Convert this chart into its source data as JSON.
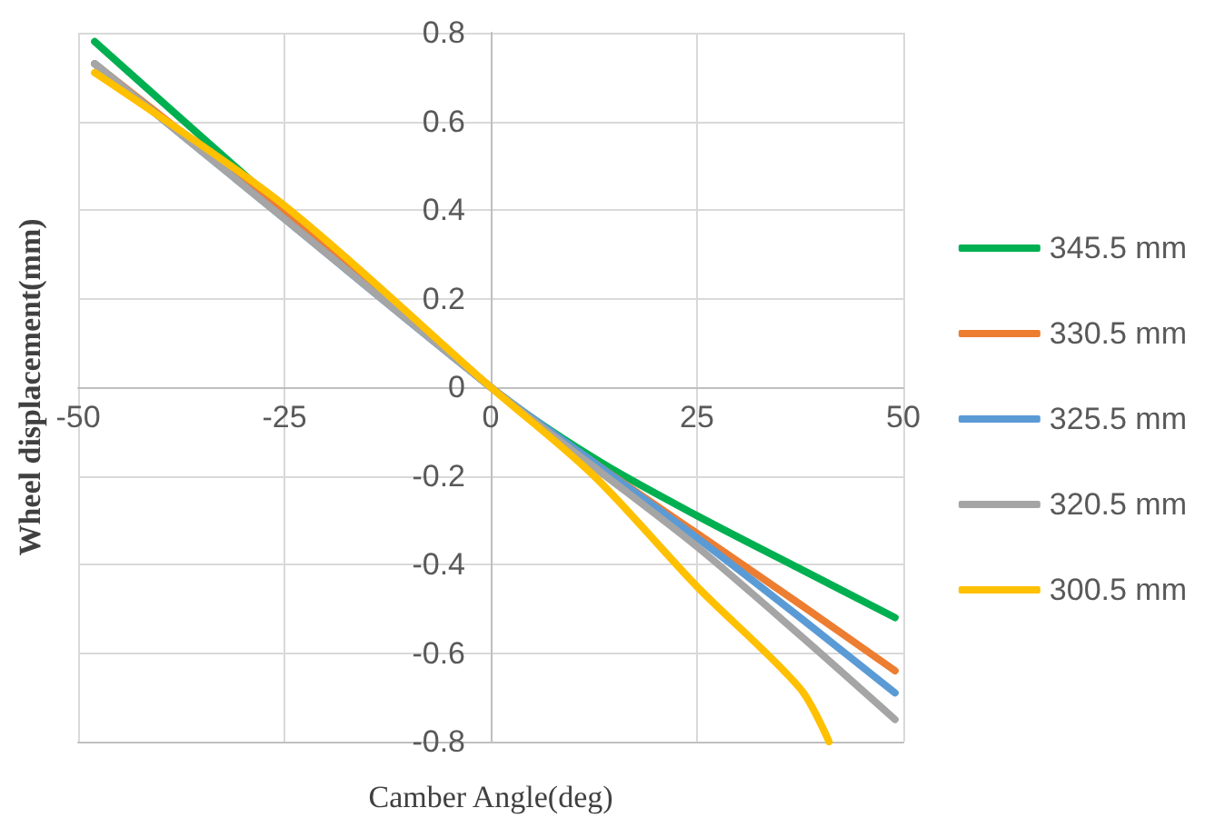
{
  "chart_data": {
    "type": "line",
    "xlabel": "Camber Angle(deg)",
    "ylabel": "Wheel displacement(mm)",
    "xlim": [
      -50,
      50
    ],
    "xticks": [
      -50,
      -25,
      0,
      25,
      50
    ],
    "ylim": [
      -0.8,
      0.8
    ],
    "yticks": [
      -0.8,
      -0.6,
      -0.4,
      -0.2,
      0,
      0.2,
      0.4,
      0.6,
      0.8
    ],
    "grid": true,
    "legend": "right",
    "marker": "none",
    "line_style": "solid",
    "series": [
      {
        "name": "345.5 mm",
        "color": "#00b050",
        "x": [
          -48,
          -25,
          0,
          12.5,
          25,
          37.5,
          49
        ],
        "values": [
          0.78,
          0.4,
          0,
          -0.16,
          -0.29,
          -0.41,
          -0.52
        ]
      },
      {
        "name": "330.5 mm",
        "color": "#ed7d31",
        "x": [
          -48,
          -25,
          0,
          12.5,
          25,
          37.5,
          49
        ],
        "values": [
          0.73,
          0.39,
          0,
          -0.17,
          -0.33,
          -0.49,
          -0.64
        ]
      },
      {
        "name": "325.5 mm",
        "color": "#5b9bd5",
        "x": [
          -48,
          -25,
          0,
          12.5,
          25,
          37.5,
          49
        ],
        "values": [
          0.73,
          0.38,
          0,
          -0.17,
          -0.34,
          -0.52,
          -0.69
        ]
      },
      {
        "name": "320.5 mm",
        "color": "#a5a5a5",
        "x": [
          -48,
          -25,
          0,
          12.5,
          25,
          37.5,
          49
        ],
        "values": [
          0.73,
          0.38,
          0,
          -0.18,
          -0.36,
          -0.56,
          -0.75
        ]
      },
      {
        "name": "300.5 mm",
        "color": "#ffc000",
        "x": [
          -48,
          -25,
          0,
          12.5,
          25,
          37.5,
          41
        ],
        "values": [
          0.71,
          0.41,
          0,
          -0.2,
          -0.45,
          -0.68,
          -0.8
        ]
      }
    ]
  }
}
